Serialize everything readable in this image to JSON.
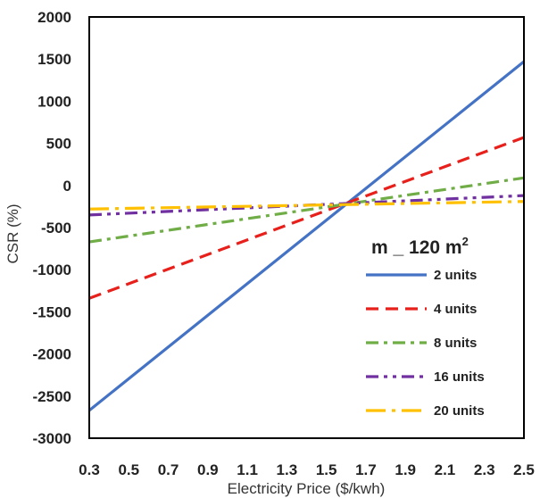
{
  "chart_data": {
    "type": "line",
    "title": "",
    "xlabel": "Electricity Price ($/kwh)",
    "ylabel": "CSR (%)",
    "xlim": [
      0.3,
      2.5
    ],
    "ylim": [
      -3000,
      2000
    ],
    "x_ticks": [
      "0.3",
      "0.5",
      "0.7",
      "0.9",
      "1.1",
      "1.3",
      "1.5",
      "1.7",
      "1.9",
      "2.1",
      "2.3",
      "2.5"
    ],
    "y_ticks": [
      "2000",
      "1500",
      "1000",
      "500",
      "0",
      "-500",
      "-1000",
      "-1500",
      "-2000",
      "-2500",
      "-3000"
    ],
    "grid": false,
    "legend": {
      "title_main": "m _ 120 m",
      "title_sup": "2",
      "placement": "right"
    },
    "series": [
      {
        "name": "2 units",
        "color": "#4472C4",
        "dash": "solid",
        "x": [
          0.3,
          2.5
        ],
        "y": [
          -2670,
          1470
        ]
      },
      {
        "name": "4 units",
        "color": "#E8201C",
        "dash": "dash",
        "x": [
          0.3,
          2.5
        ],
        "y": [
          -1340,
          570
        ]
      },
      {
        "name": "8 units",
        "color": "#70AD47",
        "dash": "dash-dot",
        "x": [
          0.3,
          2.5
        ],
        "y": [
          -670,
          90
        ]
      },
      {
        "name": "16 units",
        "color": "#7030A0",
        "dash": "dash-dot-dot",
        "x": [
          0.3,
          2.5
        ],
        "y": [
          -350,
          -120
        ]
      },
      {
        "name": "20 units",
        "color": "#FFC000",
        "dash": "long-dash-dot",
        "x": [
          0.3,
          2.5
        ],
        "y": [
          -280,
          -190
        ]
      }
    ]
  }
}
